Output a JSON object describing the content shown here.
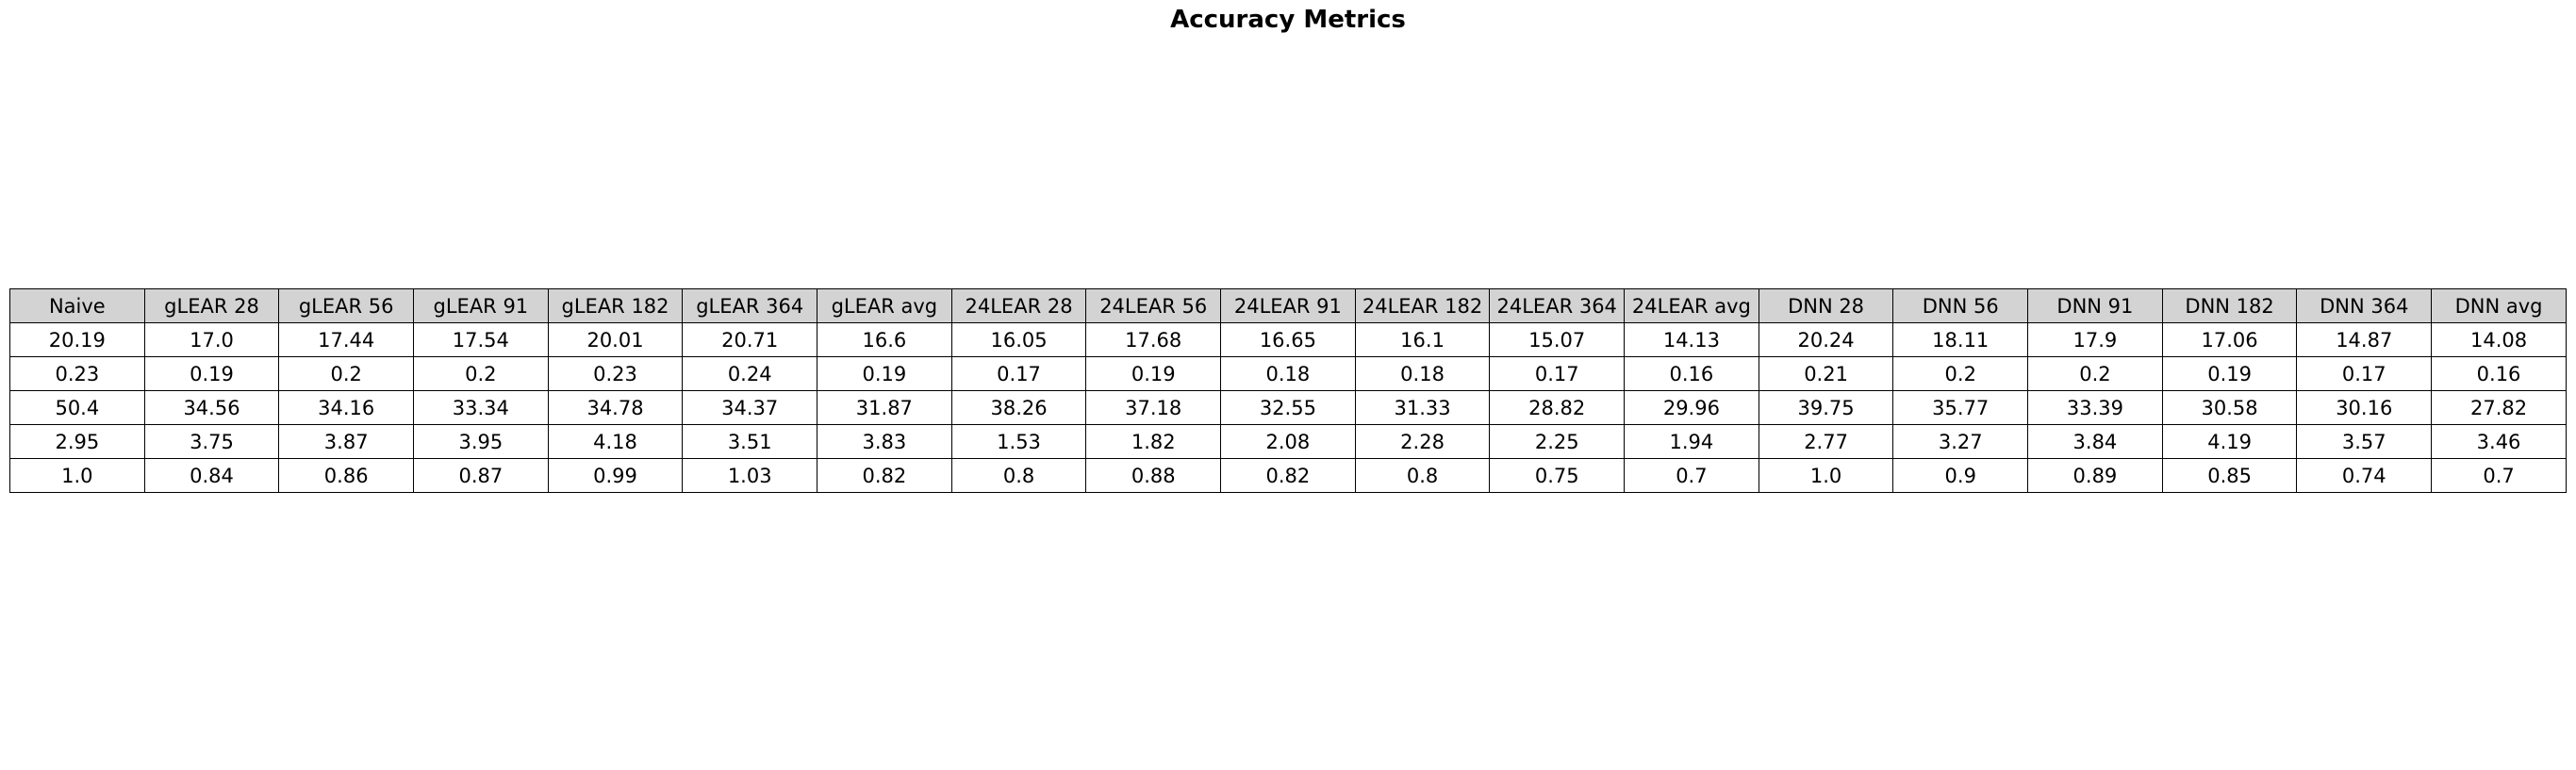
{
  "chart_data": {
    "type": "table",
    "title": "Accuracy Metrics",
    "columns": [
      "Naive",
      "gLEAR 28",
      "gLEAR 56",
      "gLEAR 91",
      "gLEAR 182",
      "gLEAR 364",
      "gLEAR avg",
      "24LEAR 28",
      "24LEAR 56",
      "24LEAR 91",
      "24LEAR 182",
      "24LEAR 364",
      "24LEAR avg",
      "DNN 28",
      "DNN 56",
      "DNN 91",
      "DNN 182",
      "DNN 364",
      "DNN avg"
    ],
    "rows": [
      [
        "20.19",
        "17.0",
        "17.44",
        "17.54",
        "20.01",
        "20.71",
        "16.6",
        "16.05",
        "17.68",
        "16.65",
        "16.1",
        "15.07",
        "14.13",
        "20.24",
        "18.11",
        "17.9",
        "17.06",
        "14.87",
        "14.08"
      ],
      [
        "0.23",
        "0.19",
        "0.2",
        "0.2",
        "0.23",
        "0.24",
        "0.19",
        "0.17",
        "0.19",
        "0.18",
        "0.18",
        "0.17",
        "0.16",
        "0.21",
        "0.2",
        "0.2",
        "0.19",
        "0.17",
        "0.16"
      ],
      [
        "50.4",
        "34.56",
        "34.16",
        "33.34",
        "34.78",
        "34.37",
        "31.87",
        "38.26",
        "37.18",
        "32.55",
        "31.33",
        "28.82",
        "29.96",
        "39.75",
        "35.77",
        "33.39",
        "30.58",
        "30.16",
        "27.82"
      ],
      [
        "2.95",
        "3.75",
        "3.87",
        "3.95",
        "4.18",
        "3.51",
        "3.83",
        "1.53",
        "1.82",
        "2.08",
        "2.28",
        "2.25",
        "1.94",
        "2.77",
        "3.27",
        "3.84",
        "4.19",
        "3.57",
        "3.46"
      ],
      [
        "1.0",
        "0.84",
        "0.86",
        "0.87",
        "0.99",
        "1.03",
        "0.82",
        "0.8",
        "0.88",
        "0.82",
        "0.8",
        "0.75",
        "0.7",
        "1.0",
        "0.9",
        "0.89",
        "0.85",
        "0.74",
        "0.7"
      ]
    ],
    "colors": {
      "header_background": "#d3d3d3",
      "cell_background": "#ffffff",
      "border": "#000000"
    }
  }
}
